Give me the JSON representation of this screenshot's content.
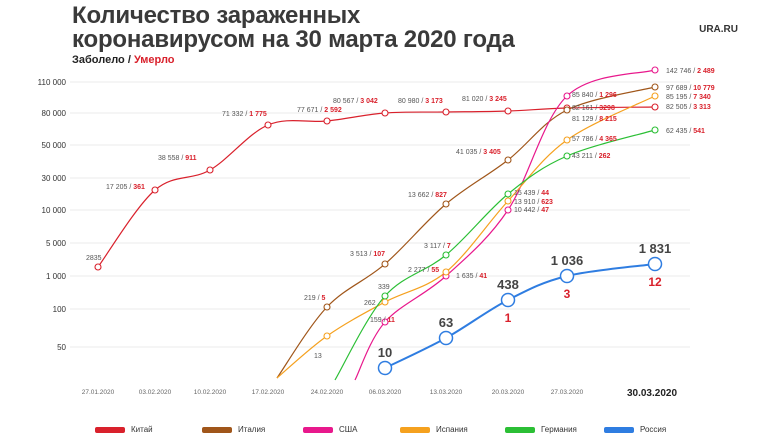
{
  "header": {
    "title_line1": "Количество зараженных",
    "title_line2": "коронавирусом на 30 марта 2020 года",
    "brand": "URA.RU",
    "subtitle_infected": "Заболело",
    "subtitle_sep": " / ",
    "subtitle_deaths": "Умерло"
  },
  "chart_data": {
    "type": "line",
    "title": "Количество зараженных коронавирусом на 30 марта 2020 года",
    "x_ticks": [
      "27.01.2020",
      "03.02.2020",
      "10.02.2020",
      "17.02.2020",
      "24.02.2020",
      "06.03.2020",
      "13.03.2020",
      "20.03.2020",
      "27.03.2020",
      "30.03.2020"
    ],
    "y_ticks": [
      "110 000",
      "80 000",
      "50 000",
      "30 000",
      "10 000",
      "5 000",
      "1 000",
      "100",
      "50"
    ],
    "colors": {
      "china": "#d9212c",
      "italy": "#a0561a",
      "usa": "#e8188c",
      "spain": "#f5a11f",
      "germany": "#2bbf35",
      "russia": "#2f7de1"
    },
    "series": [
      {
        "key": "china",
        "name": "Китай",
        "points": [
          {
            "x": "27.01.2020",
            "cases": "2835",
            "deaths": ""
          },
          {
            "x": "03.02.2020",
            "cases": "17 205",
            "deaths": "361"
          },
          {
            "x": "10.02.2020",
            "cases": "38 558",
            "deaths": "911"
          },
          {
            "x": "17.02.2020",
            "cases": "71 332",
            "deaths": "1 775"
          },
          {
            "x": "24.02.2020",
            "cases": "77 671",
            "deaths": "2 592"
          },
          {
            "x": "06.03.2020",
            "cases": "80 567",
            "deaths": "3 042"
          },
          {
            "x": "13.03.2020",
            "cases": "80 980",
            "deaths": "3 173"
          },
          {
            "x": "20.03.2020",
            "cases": "81 020",
            "deaths": "3 245"
          },
          {
            "x": "27.03.2020",
            "cases": "82 161",
            "deaths": "3298"
          },
          {
            "x": "30.03.2020",
            "cases": "82 505",
            "deaths": "3 313"
          }
        ]
      },
      {
        "key": "italy",
        "name": "Италия",
        "points": [
          {
            "x": "24.02.2020",
            "cases": "219",
            "deaths": "5"
          },
          {
            "x": "06.03.2020",
            "cases": "3 513",
            "deaths": "107"
          },
          {
            "x": "13.03.2020",
            "cases": "13 662",
            "deaths": "827"
          },
          {
            "x": "20.03.2020",
            "cases": "41 035",
            "deaths": "3 405"
          },
          {
            "x": "27.03.2020",
            "cases": "81 129",
            "deaths": "8 215"
          },
          {
            "x": "30.03.2020",
            "cases": "97 689",
            "deaths": "10 779"
          }
        ]
      },
      {
        "key": "usa",
        "name": "США",
        "points": [
          {
            "x": "06.03.2020",
            "cases": "159",
            "deaths": "11"
          },
          {
            "x": "13.03.2020",
            "cases": "1 635",
            "deaths": "41"
          },
          {
            "x": "20.03.2020",
            "cases": "10 442",
            "deaths": "47"
          },
          {
            "x": "27.03.2020",
            "cases": "85 840",
            "deaths": "1 296"
          },
          {
            "x": "30.03.2020",
            "cases": "142 746",
            "deaths": "2 489"
          }
        ]
      },
      {
        "key": "spain",
        "name": "Испания",
        "points": [
          {
            "x": "24.02.2020",
            "cases": "13",
            "deaths": ""
          },
          {
            "x": "06.03.2020",
            "cases": "262",
            "deaths": ""
          },
          {
            "x": "13.03.2020",
            "cases": "2 277",
            "deaths": "55"
          },
          {
            "x": "20.03.2020",
            "cases": "13 910",
            "deaths": "623"
          },
          {
            "x": "27.03.2020",
            "cases": "57 786",
            "deaths": "4 365"
          },
          {
            "x": "30.03.2020",
            "cases": "85 195",
            "deaths": "7 340"
          }
        ]
      },
      {
        "key": "germany",
        "name": "Германия",
        "points": [
          {
            "x": "06.03.2020",
            "cases": "339",
            "deaths": ""
          },
          {
            "x": "13.03.2020",
            "cases": "3 117",
            "deaths": "7"
          },
          {
            "x": "20.03.2020",
            "cases": "15 439",
            "deaths": "44"
          },
          {
            "x": "27.03.2020",
            "cases": "43 211",
            "deaths": "262"
          },
          {
            "x": "30.03.2020",
            "cases": "62 435",
            "deaths": "541"
          }
        ]
      },
      {
        "key": "russia",
        "name": "Россия",
        "points": [
          {
            "x": "06.03.2020",
            "cases": "10",
            "deaths": ""
          },
          {
            "x": "13.03.2020",
            "cases": "63",
            "deaths": ""
          },
          {
            "x": "20.03.2020",
            "cases": "438",
            "deaths": "1"
          },
          {
            "x": "27.03.2020",
            "cases": "1 036",
            "deaths": "3"
          },
          {
            "x": "30.03.2020",
            "cases": "1 831",
            "deaths": "12"
          }
        ]
      }
    ],
    "grid": true,
    "legend_position": "bottom"
  }
}
